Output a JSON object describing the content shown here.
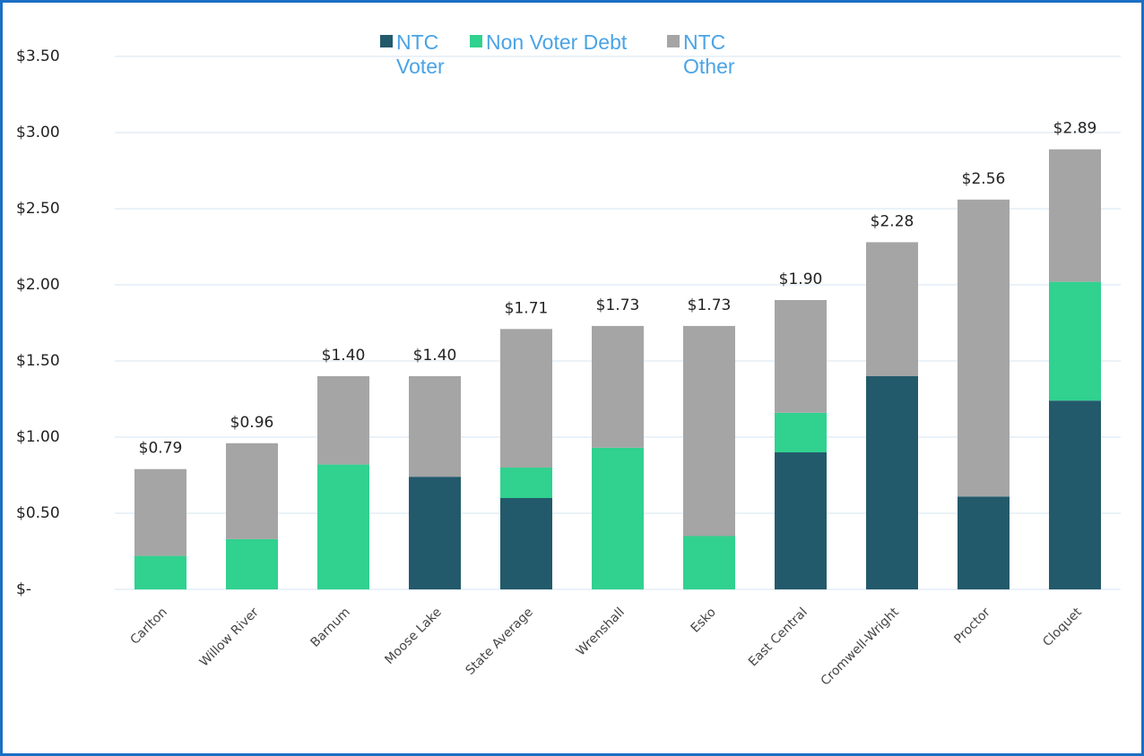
{
  "chart_data": {
    "type": "stacked_bar",
    "categories": [
      "Carlton",
      "Willow River",
      "Barnum",
      "Moose Lake",
      "State Average",
      "Wrenshall",
      "Esko",
      "East Central",
      "Cromwell-Wright",
      "Proctor",
      "Cloquet"
    ],
    "series": [
      {
        "name": "NTC Voter",
        "color": "#235a6b",
        "values": [
          0,
          0,
          0,
          0.74,
          0.6,
          0,
          0,
          0.9,
          1.4,
          0.61,
          1.24
        ]
      },
      {
        "name": "Non Voter Debt",
        "color": "#31d18f",
        "values": [
          0.22,
          0.33,
          0.82,
          0,
          0.2,
          0.93,
          0.35,
          0.26,
          0,
          0,
          0.78
        ]
      },
      {
        "name": "NTC Other",
        "color": "#a5a5a5",
        "values": [
          0.57,
          0.63,
          0.58,
          0.66,
          0.91,
          0.8,
          1.38,
          0.74,
          0.88,
          1.95,
          0.87
        ]
      }
    ],
    "totals": [
      0.79,
      0.96,
      1.4,
      1.4,
      1.71,
      1.73,
      1.73,
      1.9,
      2.28,
      2.56,
      2.89
    ],
    "total_labels": [
      "$0.79",
      "$0.96",
      "$1.40",
      "$1.40",
      "$1.71",
      "$1.73",
      "$1.73",
      "$1.90",
      "$2.28",
      "$2.56",
      "$2.89"
    ],
    "ylim": [
      0,
      3.5
    ],
    "yticks": [
      {
        "value": 0,
        "label": "$-"
      },
      {
        "value": 0.5,
        "label": "$0.50"
      },
      {
        "value": 1,
        "label": "$1.00"
      },
      {
        "value": 1.5,
        "label": "$1.50"
      },
      {
        "value": 2,
        "label": "$2.00"
      },
      {
        "value": 2.5,
        "label": "$2.50"
      },
      {
        "value": 3,
        "label": "$3.00"
      },
      {
        "value": 3.5,
        "label": "$3.50"
      }
    ],
    "grid": true,
    "legend": "top"
  }
}
